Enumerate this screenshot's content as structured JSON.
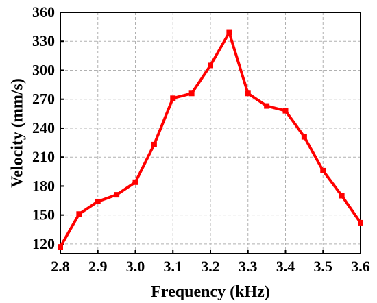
{
  "chart_data": {
    "type": "line",
    "xlabel": "Frequency (kHz)",
    "ylabel": "Velocity (mm/s)",
    "xlim": [
      2.8,
      3.6
    ],
    "ylim": [
      110,
      360
    ],
    "xticks": [
      "2.8",
      "2.9",
      "3.0",
      "3.1",
      "3.2",
      "3.3",
      "3.4",
      "3.5",
      "3.6"
    ],
    "yticks": [
      "120",
      "150",
      "180",
      "210",
      "240",
      "270",
      "300",
      "330",
      "360"
    ],
    "grid": true,
    "legend": "none",
    "colors": {
      "series": "#ff0000",
      "axis": "#000000",
      "grid": "#b0b0b0"
    },
    "series": [
      {
        "marker": "square",
        "x": [
          2.8,
          2.85,
          2.9,
          2.95,
          3.0,
          3.05,
          3.1,
          3.15,
          3.2,
          3.25,
          3.3,
          3.35,
          3.4,
          3.45,
          3.5,
          3.55,
          3.6
        ],
        "y": [
          117,
          151,
          164,
          171,
          184,
          223,
          271,
          276,
          305,
          339,
          276,
          263,
          258,
          231,
          196,
          170,
          142
        ]
      }
    ]
  }
}
